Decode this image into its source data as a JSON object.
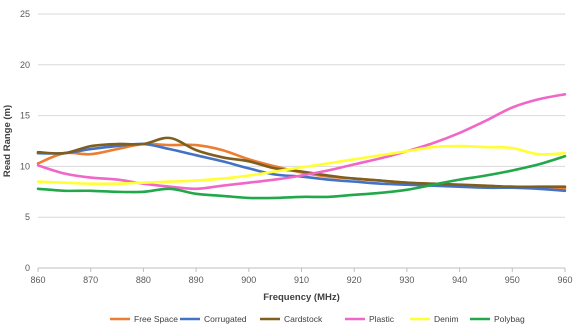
{
  "chart_data": {
    "type": "line",
    "xlabel": "Frequency (MHz)",
    "ylabel": "Read Range (m)",
    "xlim": [
      860,
      960
    ],
    "ylim": [
      0,
      25
    ],
    "x_ticks": [
      860,
      870,
      880,
      890,
      900,
      910,
      920,
      930,
      940,
      950,
      960
    ],
    "y_ticks": [
      0,
      5,
      10,
      15,
      20,
      25
    ],
    "grid": "horizontal",
    "legend_position": "bottom",
    "x": [
      860,
      865,
      870,
      875,
      880,
      885,
      890,
      895,
      900,
      905,
      910,
      915,
      920,
      925,
      930,
      935,
      940,
      945,
      950,
      955,
      960
    ],
    "series": [
      {
        "name": "Free Space",
        "color": "#ED7D31",
        "values": [
          10.3,
          11.3,
          11.2,
          11.7,
          12.2,
          12.1,
          12.1,
          11.6,
          10.7,
          10.0,
          9.4,
          9.0,
          8.8,
          8.6,
          8.4,
          8.2,
          8.1,
          8.0,
          8.0,
          7.9,
          7.8
        ]
      },
      {
        "name": "Corrugated",
        "color": "#4472C4",
        "values": [
          11.3,
          11.3,
          11.7,
          12.0,
          12.2,
          11.7,
          11.1,
          10.5,
          9.8,
          9.2,
          9.0,
          8.7,
          8.5,
          8.3,
          8.2,
          8.1,
          8.0,
          7.9,
          7.9,
          7.8,
          7.6
        ]
      },
      {
        "name": "Cardstock",
        "color": "#7F5F1F",
        "values": [
          11.4,
          11.3,
          12.0,
          12.2,
          12.2,
          12.8,
          11.6,
          10.9,
          10.5,
          9.8,
          9.5,
          9.1,
          8.8,
          8.6,
          8.4,
          8.3,
          8.2,
          8.1,
          8.0,
          8.0,
          8.0
        ]
      },
      {
        "name": "Plastic",
        "color": "#F067C8",
        "values": [
          10.1,
          9.3,
          8.9,
          8.7,
          8.3,
          8.0,
          7.8,
          8.1,
          8.4,
          8.7,
          9.1,
          9.6,
          10.2,
          10.8,
          11.5,
          12.3,
          13.3,
          14.5,
          15.8,
          16.6,
          17.1
        ]
      },
      {
        "name": "Denim",
        "color": "#FFFF33",
        "values": [
          8.5,
          8.4,
          8.3,
          8.3,
          8.4,
          8.5,
          8.6,
          8.8,
          9.1,
          9.5,
          9.9,
          10.3,
          10.7,
          11.1,
          11.5,
          11.9,
          12.0,
          11.9,
          11.8,
          11.2,
          11.3
        ]
      },
      {
        "name": "Polybag",
        "color": "#22A84A",
        "values": [
          7.8,
          7.6,
          7.6,
          7.5,
          7.5,
          7.8,
          7.3,
          7.1,
          6.9,
          6.9,
          7.0,
          7.0,
          7.2,
          7.4,
          7.7,
          8.2,
          8.7,
          9.1,
          9.6,
          10.2,
          11.0
        ]
      }
    ]
  }
}
